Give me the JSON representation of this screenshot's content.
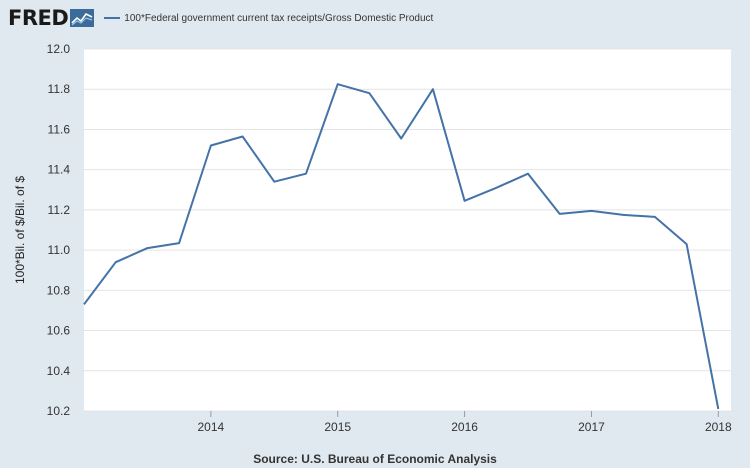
{
  "header": {
    "logo_text": "FRED",
    "legend_label": "100*Federal government current tax receipts/Gross Domestic Product"
  },
  "colors": {
    "series": "#4572a7",
    "background": "#e1e9f0",
    "plot_background": "#ffffff",
    "grid": "#e4e4e4"
  },
  "icons": {
    "logo": "fred-logo-graph-icon"
  },
  "chart_data": {
    "type": "line",
    "title": "",
    "ylabel": "100*Bil. of $/Bil. of $",
    "xlabel": "",
    "ylim": [
      10.2,
      12.0
    ],
    "yticks": [
      "10.2",
      "10.4",
      "10.6",
      "10.8",
      "11.0",
      "11.2",
      "11.4",
      "11.6",
      "11.8",
      "12.0"
    ],
    "xrange": [
      2013.0,
      2018.1
    ],
    "xticks": [
      {
        "value": 2014,
        "label": "2014"
      },
      {
        "value": 2015,
        "label": "2015"
      },
      {
        "value": 2016,
        "label": "2016"
      },
      {
        "value": 2017,
        "label": "2017"
      },
      {
        "value": 2018,
        "label": "2018"
      }
    ],
    "series": [
      {
        "name": "100*Federal government current tax receipts/Gross Domestic Product",
        "x": [
          2013.0,
          2013.25,
          2013.5,
          2013.75,
          2014.0,
          2014.25,
          2014.5,
          2014.75,
          2015.0,
          2015.25,
          2015.5,
          2015.75,
          2016.0,
          2016.25,
          2016.5,
          2016.75,
          2017.0,
          2017.25,
          2017.5,
          2017.75,
          2018.0
        ],
        "values": [
          10.73,
          10.94,
          11.01,
          11.035,
          11.52,
          11.565,
          11.34,
          11.38,
          11.825,
          11.78,
          11.555,
          11.8,
          11.245,
          11.31,
          11.38,
          11.18,
          11.195,
          11.175,
          11.165,
          11.03,
          10.21
        ]
      }
    ]
  },
  "footer": {
    "source": "Source: U.S. Bureau of Economic Analysis"
  }
}
